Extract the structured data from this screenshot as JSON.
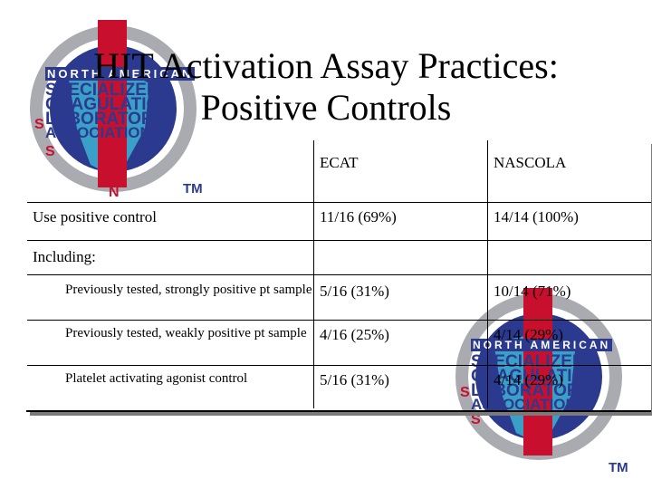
{
  "slide": {
    "title_line1": "HIT Activation Assay Practices:",
    "title_line2": "Positive Controls"
  },
  "logo": {
    "line1": "NORTH AMERICAN",
    "line2": "SPECIALIZED",
    "line3": "COAGULATION",
    "line4": "LABORATORY",
    "line5": "ASSOCIATION",
    "tm": "TM",
    "colors": {
      "red": "#c8102e",
      "blue": "#2b3a8f",
      "gray": "#a9abb0"
    }
  },
  "table": {
    "headers": [
      "",
      "ECAT",
      "NASCOLA"
    ],
    "rows": [
      {
        "label": "Use positive control",
        "ecat": "11/16 (69%)",
        "nascola": "14/14 (100%)"
      },
      {
        "label": "Including:",
        "ecat": "",
        "nascola": ""
      },
      {
        "label": "Previously tested, strongly positive pt sample",
        "ecat": "5/16 (31%)",
        "nascola": "10/14 (71%)"
      },
      {
        "label": "Previously tested, weakly positive pt sample",
        "ecat": "4/16 (25%)",
        "nascola": "4/14 (29%)"
      },
      {
        "label": "Platelet activating agonist control",
        "ecat": "5/16 (31%)",
        "nascola": "4/14 (29%)"
      }
    ]
  }
}
